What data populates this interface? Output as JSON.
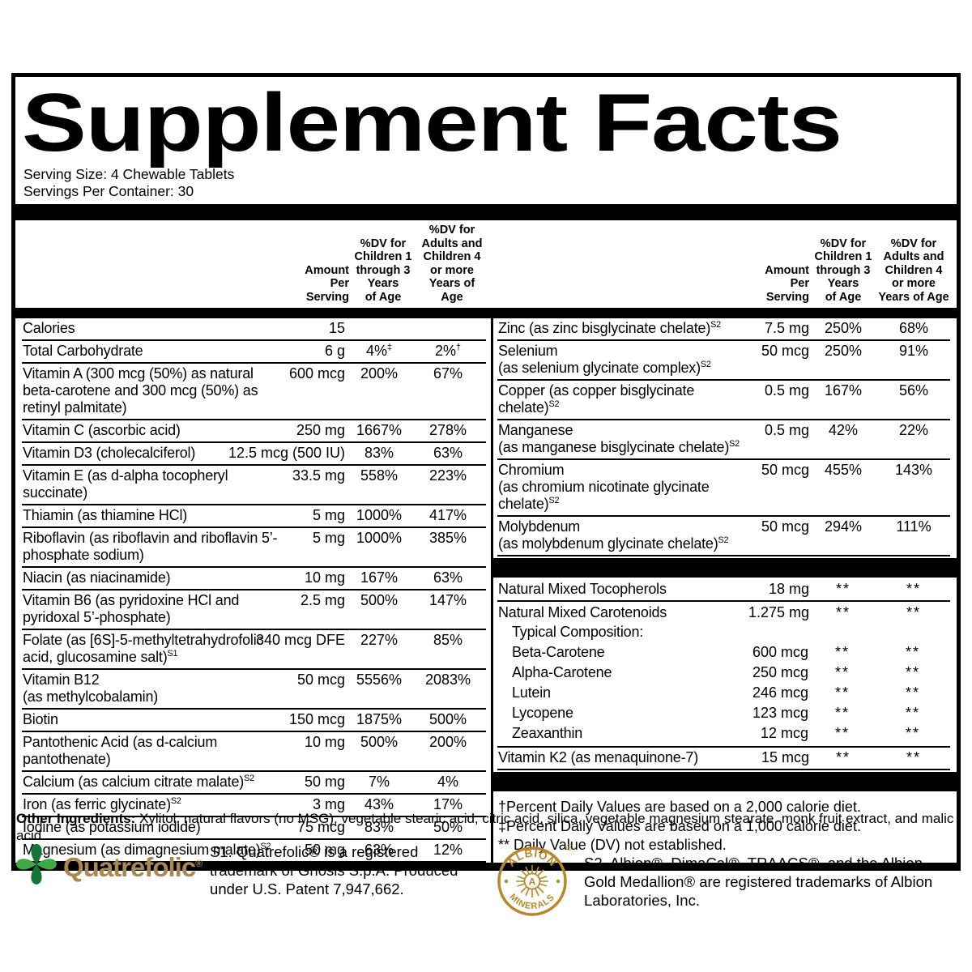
{
  "title": "Supplement Facts",
  "serving": {
    "size": "Serving Size: 4 Chewable Tablets",
    "per_container": "Servings Per Container: 30"
  },
  "headers": {
    "amount": "Amount\nPer Serving",
    "dv_children": "%DV for\nChildren 1\nthrough 3\nYears\nof Age",
    "dv_adults": "%DV for\nAdults and\nChildren 4\nor more\nYears of Age"
  },
  "left_rows": [
    {
      "name": "Calories",
      "amount": "15",
      "dv1": "",
      "dv2": ""
    },
    {
      "name": "Total Carbohydrate",
      "amount": "6 g",
      "dv1": "4%",
      "dv1_sup": "‡",
      "dv2": "2%",
      "dv2_sup": "†"
    },
    {
      "name": "Vitamin A (300 mcg (50%) as natural beta-carotene and 300 mcg (50%) as retinyl palmitate)",
      "amount": "600 mcg",
      "dv1": "200%",
      "dv2": "67%"
    },
    {
      "name": "Vitamin C (ascorbic acid)",
      "amount": "250 mg",
      "dv1": "1667%",
      "dv2": "278%"
    },
    {
      "name": "Vitamin D3 (cholecalciferol)",
      "amount": "12.5 mcg (500 IU)",
      "dv1": "83%",
      "dv2": "63%"
    },
    {
      "name": "Vitamin E (as d-alpha tocopheryl succinate)",
      "amount": "33.5 mg",
      "dv1": "558%",
      "dv2": "223%"
    },
    {
      "name": "Thiamin (as thiamine HCl)",
      "amount": "5 mg",
      "dv1": "1000%",
      "dv2": "417%"
    },
    {
      "name": "Riboflavin (as riboflavin and riboflavin 5’-phosphate sodium)",
      "amount": "5 mg",
      "dv1": "1000%",
      "dv2": "385%"
    },
    {
      "name": "Niacin (as niacinamide)",
      "amount": "10 mg",
      "dv1": "167%",
      "dv2": "63%"
    },
    {
      "name": "Vitamin B6 (as pyridoxine HCl and pyridoxal 5’-phosphate)",
      "amount": "2.5 mg",
      "dv1": "500%",
      "dv2": "147%"
    },
    {
      "name": "Folate (as [6S]-5-methyltetrahydrofolic acid, glucosamine salt)",
      "name_sup": "S1",
      "amount": "340 mcg DFE",
      "dv1": "227%",
      "dv2": "85%"
    },
    {
      "name": "Vitamin B12\n(as methylcobalamin)",
      "amount": "50 mcg",
      "dv1": "5556%",
      "dv2": "2083%"
    },
    {
      "name": "Biotin",
      "amount": "150 mcg",
      "dv1": "1875%",
      "dv2": "500%"
    },
    {
      "name": "Pantothenic Acid (as d-calcium pantothenate)",
      "amount": "10 mg",
      "dv1": "500%",
      "dv2": "200%"
    },
    {
      "name": "Calcium (as calcium citrate malate)",
      "name_sup": "S2",
      "amount": "50 mg",
      "dv1": "7%",
      "dv2": "4%"
    },
    {
      "name": "Iron (as ferric glycinate)",
      "name_sup": "S2",
      "amount": "3 mg",
      "dv1": "43%",
      "dv2": "17%"
    },
    {
      "name": "Iodine (as potassium iodide)",
      "amount": "75 mcg",
      "dv1": "83%",
      "dv2": "50%"
    },
    {
      "name": "Magnesium (as dimagnesium malate)",
      "name_sup": "S2",
      "amount": "50 mg",
      "dv1": "63%",
      "dv2": "12%"
    }
  ],
  "right_rows": [
    {
      "name": "Zinc (as zinc bisglycinate chelate)",
      "name_sup": "S2",
      "amount": "7.5 mg",
      "dv1": "250%",
      "dv2": "68%"
    },
    {
      "name": "Selenium\n(as selenium glycinate complex)",
      "name_sup": "S2",
      "amount": "50 mcg",
      "dv1": "250%",
      "dv2": "91%"
    },
    {
      "name": "Copper (as copper bisglycinate chelate)",
      "name_sup": "S2",
      "amount": "0.5 mg",
      "dv1": "167%",
      "dv2": "56%"
    },
    {
      "name": "Manganese\n(as manganese bisglycinate chelate)",
      "name_sup": "S2",
      "amount": "0.5 mg",
      "dv1": "42%",
      "dv2": "22%"
    },
    {
      "name": "Chromium\n(as chromium nicotinate glycinate chelate)",
      "name_sup": "S2",
      "amount": "50 mcg",
      "dv1": "455%",
      "dv2": "143%"
    },
    {
      "name": "Molybdenum\n(as molybdenum glycinate chelate)",
      "name_sup": "S2",
      "amount": "50 mcg",
      "dv1": "294%",
      "dv2": "111%"
    },
    {
      "type": "bar"
    },
    {
      "name": "Natural Mixed Tocopherols",
      "amount": "18 mg",
      "dv1": "**",
      "dv2": "**"
    },
    {
      "type": "group",
      "name": "Natural Mixed Carotenoids",
      "amount": "1.275 mg",
      "dv1": "**",
      "dv2": "**",
      "sub": [
        {
          "name": "Typical Composition:",
          "amount": "",
          "dv1": "",
          "dv2": ""
        },
        {
          "name": "Beta-Carotene",
          "amount": "600 mcg",
          "dv1": "**",
          "dv2": "**"
        },
        {
          "name": "Alpha-Carotene",
          "amount": "250 mcg",
          "dv1": "**",
          "dv2": "**"
        },
        {
          "name": "Lutein",
          "amount": "246 mcg",
          "dv1": "**",
          "dv2": "**"
        },
        {
          "name": "Lycopene",
          "amount": "123 mcg",
          "dv1": "**",
          "dv2": "**"
        },
        {
          "name": "Zeaxanthin",
          "amount": "12 mcg",
          "dv1": "**",
          "dv2": "**"
        }
      ]
    },
    {
      "name": "Vitamin K2 (as menaquinone-7)",
      "amount": "15 mcg",
      "dv1": "**",
      "dv2": "**"
    },
    {
      "type": "bar"
    },
    {
      "type": "notes"
    }
  ],
  "footnotes": [
    "†Percent Daily Values are based on a 2,000 calorie diet.",
    "‡Percent Daily Values are based on a 1,000 calorie diet.",
    "** Daily Value (DV) not established."
  ],
  "other_ingredients": {
    "label": "Other Ingredients:",
    "text": " Xylitol, natural flavors (no MSG), vegetable stearic acid, citric acid, silica, vegetable magnesium stearate, monk fruit extract, and malic acid."
  },
  "trademarks": {
    "quatrefolic_wordmark": "Quatrefolic",
    "quatrefolic_reg": "®",
    "s1_note": "S1. Quatrefolic® is a registered trademark of Gnosis S.p.A. Produced under U.S. Patent 7,947,662.",
    "albion_logo_top": "ALBION",
    "albion_logo_bottom": "MINERALS",
    "albion_reg": "®",
    "s2_note": "S2. Albion®, DimaCal®, TRAACS®, and the Albion Gold Medallion® are registered trademarks of Albion Laboratories, Inc."
  },
  "colors": {
    "quatrefolic_gold": "#a98851",
    "clover_green_light": "#3fa948",
    "clover_green_dark": "#13753a",
    "albion_gold": "#b9872c"
  }
}
